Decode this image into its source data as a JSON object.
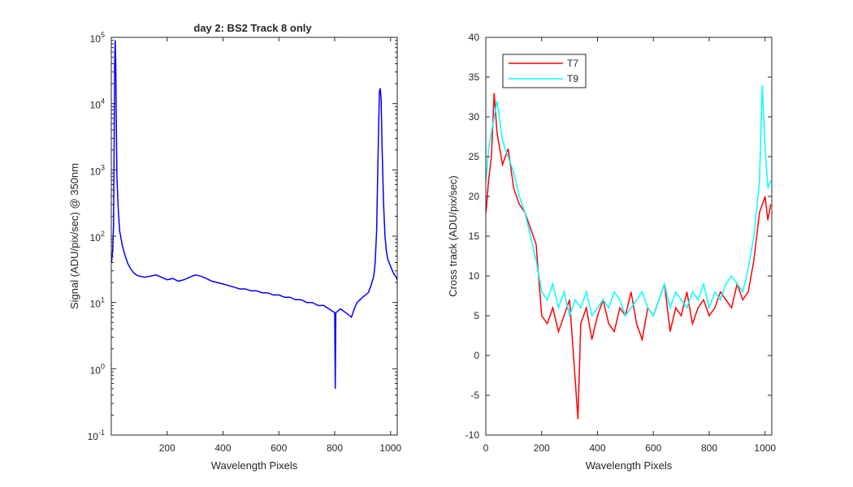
{
  "chart_data": [
    {
      "type": "line",
      "title": "day 2: BS2   Track 8 only",
      "xlabel": "Wavelength Pixels",
      "ylabel": "Signal (ADU/pix/sec) @ 350nm",
      "xlim": [
        0,
        1024
      ],
      "ylim": [
        0.1,
        100000
      ],
      "yscale": "log",
      "xticks": [
        200,
        400,
        600,
        800,
        1000
      ],
      "yticks": [
        {
          "value": 0.1,
          "mant": "10",
          "exp": "-1"
        },
        {
          "value": 1,
          "mant": "10",
          "exp": "0"
        },
        {
          "value": 10,
          "mant": "10",
          "exp": "1"
        },
        {
          "value": 100,
          "mant": "10",
          "exp": "2"
        },
        {
          "value": 1000,
          "mant": "10",
          "exp": "3"
        },
        {
          "value": 10000,
          "mant": "10",
          "exp": "4"
        },
        {
          "value": 100000,
          "mant": "10",
          "exp": "5"
        }
      ],
      "grid": false,
      "series": [
        {
          "color": "#0000ff",
          "x": [
            1,
            5,
            8,
            10,
            12,
            14,
            16,
            18,
            20,
            25,
            30,
            40,
            50,
            60,
            70,
            80,
            90,
            100,
            120,
            140,
            160,
            180,
            200,
            220,
            240,
            260,
            280,
            300,
            320,
            340,
            360,
            380,
            400,
            420,
            440,
            460,
            480,
            500,
            520,
            540,
            560,
            580,
            600,
            620,
            640,
            660,
            680,
            700,
            720,
            740,
            760,
            780,
            800,
            802,
            804,
            820,
            840,
            860,
            870,
            880,
            900,
            920,
            930,
            940,
            945,
            950,
            955,
            960,
            963,
            966,
            970,
            975,
            980,
            985,
            990,
            1000,
            1010,
            1020,
            1024
          ],
          "y": [
            40,
            60,
            150,
            1500,
            40000,
            90000,
            40000,
            5000,
            800,
            250,
            120,
            70,
            50,
            38,
            32,
            28,
            26,
            25,
            24,
            25,
            26,
            24,
            22,
            23,
            21,
            22,
            24,
            26,
            25,
            23,
            21,
            20,
            19,
            18,
            17,
            16,
            16,
            15,
            15,
            14,
            14,
            13,
            13,
            12,
            12,
            11,
            11,
            10,
            10,
            9,
            9,
            8,
            7,
            0.5,
            7,
            8,
            7,
            6,
            8,
            10,
            12,
            14,
            18,
            25,
            40,
            120,
            1500,
            15000,
            17000,
            12000,
            2000,
            300,
            100,
            60,
            45,
            35,
            28,
            24,
            22
          ]
        }
      ]
    },
    {
      "type": "line",
      "xlabel": "Wavelength Pixels",
      "ylabel": "Cross track (ADU/pix/sec)",
      "xlim": [
        0,
        1024
      ],
      "ylim": [
        -10,
        40
      ],
      "xticks": [
        0,
        200,
        400,
        600,
        800,
        1000
      ],
      "yticks": [
        -10,
        -5,
        0,
        5,
        10,
        15,
        20,
        25,
        30,
        35,
        40
      ],
      "grid": false,
      "legend": "top-left",
      "series": [
        {
          "name": "T7",
          "color": "#ff0000",
          "x": [
            1,
            10,
            20,
            30,
            40,
            60,
            80,
            100,
            120,
            140,
            160,
            180,
            200,
            220,
            240,
            260,
            280,
            300,
            320,
            330,
            340,
            360,
            380,
            400,
            420,
            440,
            460,
            480,
            500,
            520,
            540,
            560,
            580,
            600,
            620,
            640,
            660,
            680,
            700,
            720,
            740,
            760,
            780,
            800,
            820,
            840,
            860,
            880,
            900,
            920,
            940,
            960,
            980,
            1000,
            1010,
            1020
          ],
          "y": [
            18,
            22,
            25,
            33,
            28,
            24,
            26,
            21,
            19,
            18,
            16,
            14,
            5,
            4,
            6,
            3,
            5,
            7,
            -3,
            -8,
            4,
            6,
            2,
            5,
            7,
            4,
            3,
            6,
            5,
            8,
            4,
            2,
            6,
            5,
            7,
            9,
            3,
            6,
            5,
            8,
            4,
            6,
            7,
            5,
            6,
            8,
            7,
            6,
            9,
            7,
            8,
            12,
            18,
            20,
            17,
            19
          ]
        },
        {
          "name": "T9",
          "color": "#00ffff",
          "x": [
            1,
            10,
            20,
            30,
            40,
            60,
            80,
            100,
            120,
            140,
            160,
            180,
            200,
            220,
            240,
            260,
            280,
            300,
            320,
            340,
            360,
            380,
            400,
            420,
            440,
            460,
            480,
            500,
            520,
            540,
            560,
            580,
            600,
            620,
            640,
            660,
            680,
            700,
            720,
            740,
            760,
            780,
            800,
            820,
            840,
            860,
            880,
            900,
            920,
            940,
            960,
            980,
            990,
            1000,
            1010,
            1020
          ],
          "y": [
            22,
            26,
            28,
            30,
            32,
            27,
            25,
            23,
            20,
            18,
            15,
            12,
            8,
            7,
            9,
            6,
            8,
            5,
            7,
            6,
            8,
            5,
            6,
            7,
            6,
            8,
            7,
            5,
            6,
            7,
            8,
            6,
            5,
            7,
            9,
            6,
            8,
            7,
            6,
            8,
            7,
            9,
            6,
            8,
            7,
            9,
            10,
            9,
            8,
            11,
            15,
            22,
            34,
            26,
            21,
            22
          ]
        }
      ]
    }
  ]
}
